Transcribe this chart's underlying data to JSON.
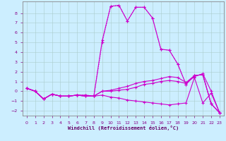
{
  "xlabel": "Windchill (Refroidissement éolien,°C)",
  "bg_color": "#cceeff",
  "line_color": "#cc00cc",
  "grid_color": "#aacccc",
  "xlim": [
    -0.5,
    23.5
  ],
  "ylim": [
    -2.5,
    9.2
  ],
  "yticks": [
    -2,
    -1,
    0,
    1,
    2,
    3,
    4,
    5,
    6,
    7,
    8
  ],
  "xticks": [
    0,
    1,
    2,
    3,
    4,
    5,
    6,
    7,
    8,
    9,
    10,
    11,
    12,
    13,
    14,
    15,
    16,
    17,
    18,
    19,
    20,
    21,
    22,
    23
  ],
  "lines": [
    {
      "x": [
        0,
        1,
        2,
        3,
        4,
        5,
        6,
        7,
        8,
        9,
        10,
        11,
        12,
        13,
        14,
        15,
        16,
        17,
        18,
        19,
        20,
        21,
        22,
        23
      ],
      "y": [
        0.3,
        0.0,
        -0.8,
        -0.3,
        -0.5,
        -0.5,
        -0.4,
        -0.4,
        -0.5,
        5.0,
        8.7,
        8.8,
        7.2,
        8.6,
        8.6,
        7.5,
        4.3,
        4.2,
        2.8,
        0.7,
        1.6,
        1.7,
        -1.3,
        -2.2
      ],
      "style": "dotted"
    },
    {
      "x": [
        0,
        1,
        2,
        3,
        4,
        5,
        6,
        7,
        8,
        9,
        10,
        11,
        12,
        13,
        14,
        15,
        16,
        17,
        18,
        19,
        20,
        21,
        22,
        23
      ],
      "y": [
        0.3,
        0.0,
        -0.8,
        -0.3,
        -0.5,
        -0.5,
        -0.4,
        -0.5,
        -0.5,
        5.2,
        8.7,
        8.8,
        7.2,
        8.6,
        8.6,
        7.5,
        4.3,
        4.2,
        2.8,
        0.7,
        1.6,
        1.7,
        -1.3,
        -2.2
      ],
      "style": "solid"
    },
    {
      "x": [
        0,
        1,
        2,
        3,
        4,
        5,
        6,
        7,
        8,
        9,
        10,
        11,
        12,
        13,
        14,
        15,
        16,
        17,
        18,
        19,
        20,
        21,
        22,
        23
      ],
      "y": [
        0.3,
        0.0,
        -0.8,
        -0.3,
        -0.5,
        -0.5,
        -0.4,
        -0.4,
        -0.5,
        0.0,
        0.1,
        0.3,
        0.5,
        0.8,
        1.0,
        1.1,
        1.3,
        1.5,
        1.4,
        0.9,
        1.6,
        1.7,
        -1.3,
        -2.2
      ],
      "style": "solid"
    },
    {
      "x": [
        0,
        1,
        2,
        3,
        4,
        5,
        6,
        7,
        8,
        9,
        10,
        11,
        12,
        13,
        14,
        15,
        16,
        17,
        18,
        19,
        20,
        21,
        22,
        23
      ],
      "y": [
        0.3,
        0.0,
        -0.8,
        -0.3,
        -0.5,
        -0.5,
        -0.4,
        -0.5,
        -0.5,
        -0.4,
        -0.6,
        -0.7,
        -0.9,
        -1.0,
        -1.1,
        -1.2,
        -1.3,
        -1.4,
        -1.3,
        -1.2,
        1.4,
        -1.2,
        -0.2,
        -2.2
      ],
      "style": "solid"
    },
    {
      "x": [
        0,
        1,
        2,
        3,
        4,
        5,
        6,
        7,
        8,
        9,
        10,
        11,
        12,
        13,
        14,
        15,
        16,
        17,
        18,
        19,
        20,
        21,
        22,
        23
      ],
      "y": [
        0.3,
        0.0,
        -0.8,
        -0.3,
        -0.5,
        -0.5,
        -0.4,
        -0.5,
        -0.5,
        0.0,
        0.0,
        0.1,
        0.2,
        0.4,
        0.7,
        0.8,
        1.0,
        1.1,
        1.0,
        0.8,
        1.5,
        1.8,
        0.0,
        -2.2
      ],
      "style": "solid"
    }
  ]
}
